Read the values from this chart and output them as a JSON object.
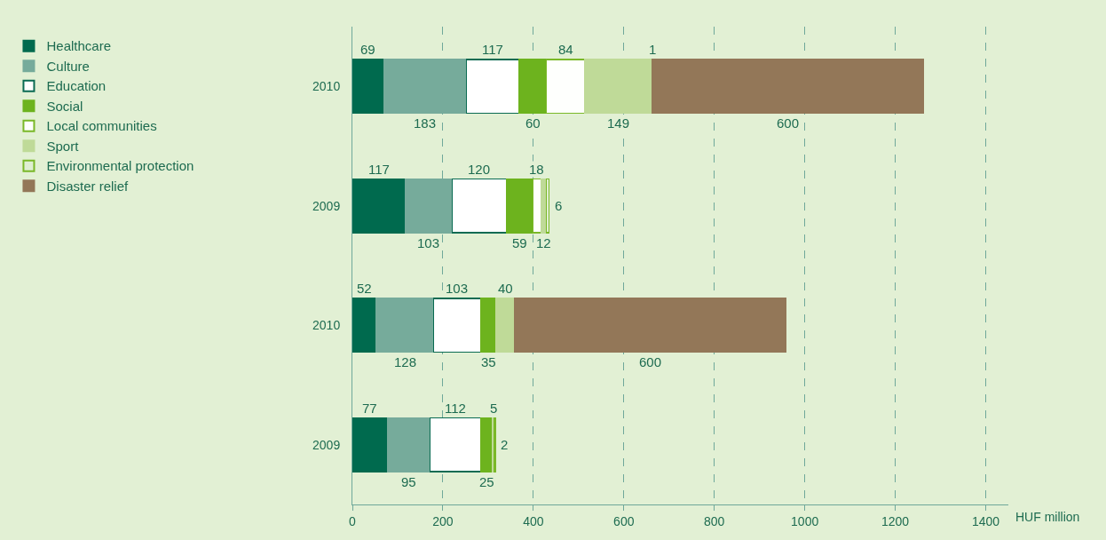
{
  "chart_data": {
    "type": "bar",
    "orientation": "horizontal",
    "stacked": true,
    "xlabel": "HUF million",
    "categories": [
      "2010",
      "2009",
      "2010",
      "2009"
    ],
    "series": [
      {
        "name": "Healthcare",
        "color": "#006a4e",
        "values": [
          69,
          117,
          52,
          77
        ]
      },
      {
        "name": "Culture",
        "color": "#76ab9b",
        "values": [
          183,
          103,
          128,
          95
        ]
      },
      {
        "name": "Education",
        "color": "#ffffff",
        "values": [
          117,
          120,
          103,
          112
        ]
      },
      {
        "name": "Social",
        "color": "#6db31e",
        "values": [
          60,
          59,
          35,
          25
        ]
      },
      {
        "name": "Local communities",
        "color": "#fefffd",
        "values": [
          84,
          18,
          null,
          null
        ]
      },
      {
        "name": "Sport",
        "color": "#bfda98",
        "values": [
          149,
          12,
          40,
          5
        ]
      },
      {
        "name": "Environmental protection",
        "color": "#dfeed2",
        "values": [
          1,
          6,
          null,
          2
        ]
      },
      {
        "name": "Disaster relief",
        "color": "#937758",
        "values": [
          600,
          null,
          600,
          null
        ]
      }
    ],
    "xlim": [
      0,
      1450
    ],
    "xticks": [
      0,
      200,
      400,
      600,
      800,
      1000,
      1200,
      1400
    ],
    "grid": "x",
    "legend": "left",
    "data_labels": true
  }
}
